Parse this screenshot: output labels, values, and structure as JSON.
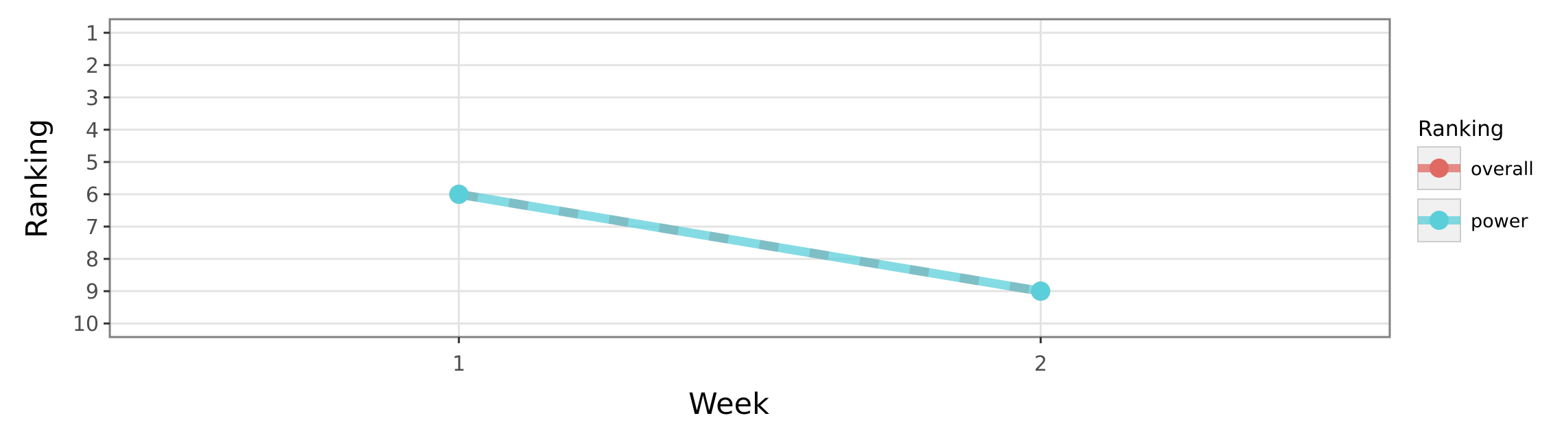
{
  "chart_data": {
    "type": "line",
    "title": "",
    "xlabel": "Week",
    "ylabel": "Ranking",
    "x_ticks": [
      "1",
      "2"
    ],
    "y_ticks": [
      "1",
      "2",
      "3",
      "4",
      "5",
      "6",
      "7",
      "8",
      "9",
      "10"
    ],
    "xlim": [
      0.4,
      2.6
    ],
    "ylim": [
      10.42,
      0.58
    ],
    "y_reversed": true,
    "grid": true,
    "legend": {
      "title": "Ranking",
      "placement": "right",
      "entries": [
        "overall",
        "power"
      ]
    },
    "series": [
      {
        "name": "overall",
        "color": "#e06a63",
        "style": "dashed",
        "points": [
          {
            "x": 1,
            "y": 6
          },
          {
            "x": 2,
            "y": 9
          }
        ]
      },
      {
        "name": "power",
        "color": "#5bcfd9",
        "style": "solid",
        "points": [
          {
            "x": 1,
            "y": 6
          },
          {
            "x": 2,
            "y": 9
          }
        ]
      }
    ]
  }
}
